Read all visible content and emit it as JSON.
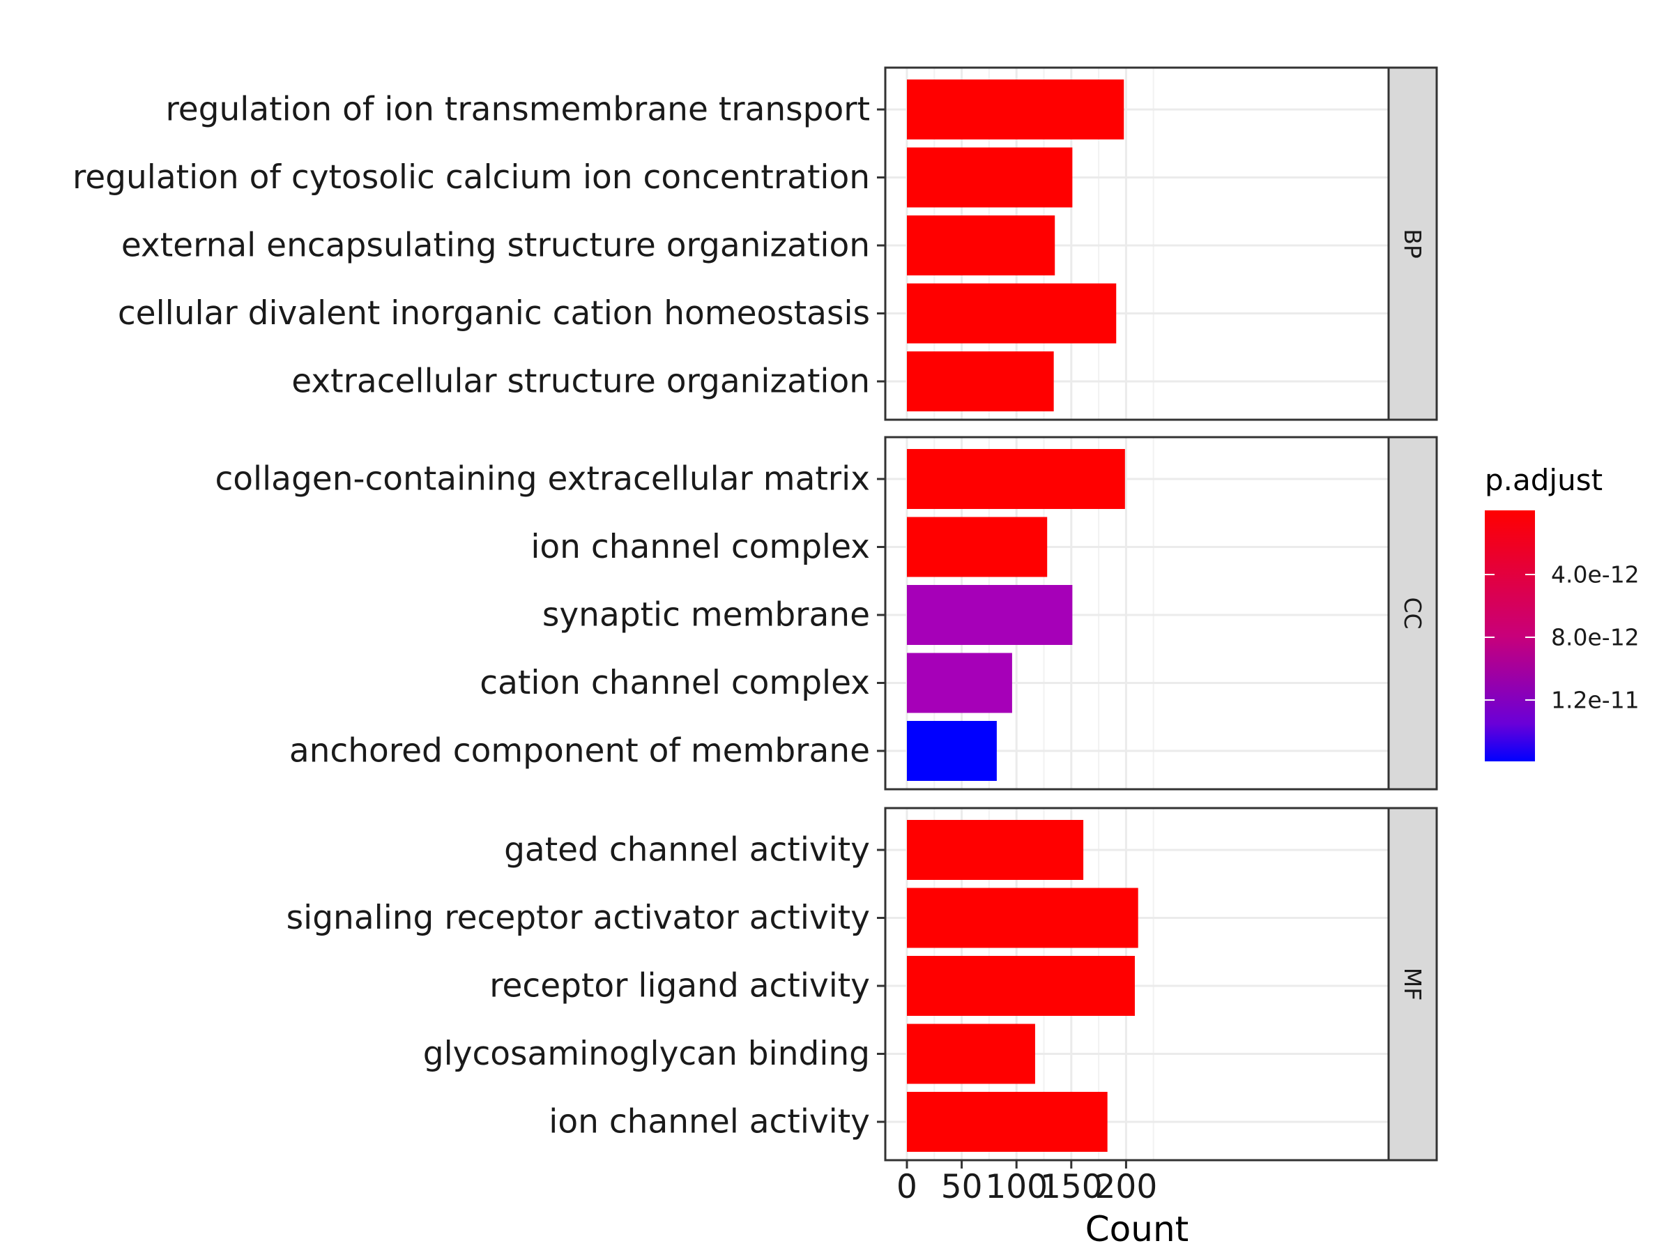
{
  "chart_data": {
    "type": "bar",
    "orientation": "horizontal",
    "xlabel": "Count",
    "ylabel": "",
    "xlim": [
      0,
      230
    ],
    "xticks": [
      0,
      50,
      100,
      150,
      200
    ],
    "grid": true,
    "facets": [
      {
        "name": "BP",
        "categories": [
          "regulation of ion transmembrane transport",
          "regulation of cytosolic calcium ion concentration",
          "external encapsulating structure organization",
          "cellular divalent inorganic cation homeostasis",
          "extracellular structure organization"
        ],
        "values": [
          198,
          151,
          135,
          191,
          134
        ],
        "colors": [
          "#ff0000",
          "#ff0000",
          "#ff0000",
          "#ff0000",
          "#ff0000"
        ]
      },
      {
        "name": "CC",
        "categories": [
          "collagen-containing extracellular matrix",
          "ion channel complex",
          "synaptic membrane",
          "cation channel complex",
          "anchored component of membrane"
        ],
        "values": [
          199,
          128,
          151,
          96,
          82
        ],
        "colors": [
          "#ff0000",
          "#ff0000",
          "#a600b8",
          "#a600b8",
          "#0000ff"
        ]
      },
      {
        "name": "MF",
        "categories": [
          "gated channel activity",
          "signaling receptor activator activity",
          "receptor ligand activity",
          "glycosaminoglycan binding",
          "ion channel activity"
        ],
        "values": [
          161,
          211,
          208,
          117,
          183
        ],
        "colors": [
          "#ff0000",
          "#ff0000",
          "#ff0000",
          "#ff0000",
          "#ff0000"
        ]
      }
    ],
    "legend": {
      "title": "p.adjust",
      "position": "right",
      "ticks": [
        "4.0e-12",
        "8.0e-12",
        "1.2e-11"
      ],
      "gradient_top": "#ff0000",
      "gradient_bottom": "#0000ff"
    }
  }
}
